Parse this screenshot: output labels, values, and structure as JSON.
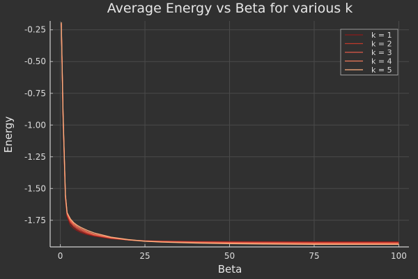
{
  "chart_data": {
    "type": "line",
    "title": "Average Energy vs Beta for various k",
    "xlabel": "Beta",
    "ylabel": "Energy",
    "xlim": [
      -3,
      103
    ],
    "ylim": [
      -1.96,
      -0.18
    ],
    "xticks": [
      0,
      25,
      50,
      75,
      100
    ],
    "xtick_labels": [
      "0",
      "25",
      "50",
      "75",
      "100"
    ],
    "yticks": [
      -0.25,
      -0.5,
      -0.75,
      -1.0,
      -1.25,
      -1.5,
      -1.75
    ],
    "ytick_labels": [
      "-0.25",
      "-0.50",
      "-0.75",
      "-1.00",
      "-1.25",
      "-1.50",
      "-1.75"
    ],
    "grid": true,
    "legend_position": "top-right",
    "x": [
      0.3,
      0.8,
      1.5,
      2,
      3,
      4,
      5,
      6,
      8,
      10,
      15,
      20,
      25,
      30,
      40,
      50,
      60,
      75,
      100
    ],
    "series": [
      {
        "name": "k = 1",
        "color": "#8b1a1a",
        "values": [
          -0.21,
          -0.95,
          -1.58,
          -1.72,
          -1.79,
          -1.815,
          -1.832,
          -1.845,
          -1.862,
          -1.875,
          -1.895,
          -1.905,
          -1.912,
          -1.914,
          -1.918,
          -1.918,
          -1.919,
          -1.92,
          -1.92
        ]
      },
      {
        "name": "k = 2",
        "color": "#c0392b",
        "values": [
          -0.2,
          -0.93,
          -1.57,
          -1.71,
          -1.77,
          -1.8,
          -1.82,
          -1.835,
          -1.855,
          -1.87,
          -1.892,
          -1.905,
          -1.912,
          -1.916,
          -1.92,
          -1.922,
          -1.923,
          -1.925,
          -1.925
        ]
      },
      {
        "name": "k = 3",
        "color": "#e05a4a",
        "values": [
          -0.2,
          -0.92,
          -1.56,
          -1.7,
          -1.76,
          -1.79,
          -1.81,
          -1.825,
          -1.848,
          -1.865,
          -1.89,
          -1.905,
          -1.913,
          -1.917,
          -1.922,
          -1.925,
          -1.927,
          -1.93,
          -1.93
        ]
      },
      {
        "name": "k = 4",
        "color": "#f07a5a",
        "values": [
          -0.2,
          -0.91,
          -1.55,
          -1.69,
          -1.75,
          -1.78,
          -1.8,
          -1.815,
          -1.84,
          -1.86,
          -1.888,
          -1.905,
          -1.915,
          -1.92,
          -1.926,
          -1.93,
          -1.932,
          -1.934,
          -1.935
        ]
      },
      {
        "name": "k = 5",
        "color": "#ffb080",
        "values": [
          -0.19,
          -0.9,
          -1.55,
          -1.69,
          -1.74,
          -1.77,
          -1.79,
          -1.805,
          -1.83,
          -1.85,
          -1.883,
          -1.902,
          -1.915,
          -1.922,
          -1.93,
          -1.935,
          -1.937,
          -1.94,
          -1.94
        ]
      }
    ]
  }
}
